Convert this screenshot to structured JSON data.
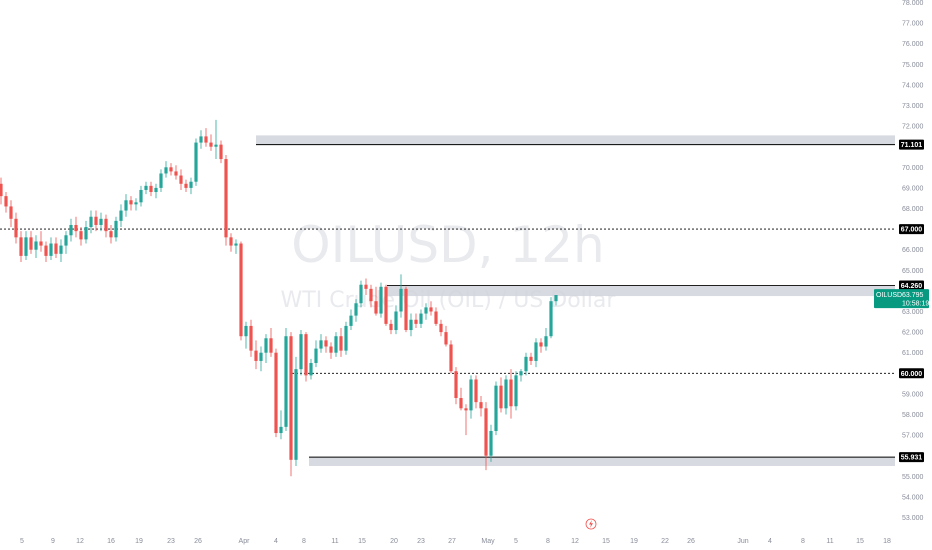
{
  "chart_data": {
    "type": "candlestick",
    "symbol_watermark": "OILUSD, 12h",
    "description_watermark": "WTI Crude Oil (OIL) / US Dollar",
    "y_axis": {
      "range": [
        52.5,
        78.0
      ],
      "ticks": [
        78.0,
        77.0,
        76.0,
        75.0,
        74.0,
        73.0,
        72.0,
        71.0,
        70.0,
        69.0,
        68.0,
        67.0,
        66.0,
        65.0,
        64.0,
        63.0,
        62.0,
        61.0,
        60.0,
        59.0,
        58.0,
        57.0,
        56.0,
        55.0,
        54.0,
        53.0
      ]
    },
    "x_axis": {
      "tick_labels": [
        "5",
        "9",
        "12",
        "16",
        "19",
        "23",
        "26",
        "Apr",
        "4",
        "8",
        "11",
        "15",
        "20",
        "23",
        "27",
        "May",
        "5",
        "8",
        "12",
        "15",
        "19",
        "22",
        "26",
        "Jun",
        "4",
        "8",
        "11",
        "15",
        "18"
      ]
    },
    "zones": [
      {
        "low": 71.1,
        "high": 71.55
      },
      {
        "low": 63.75,
        "high": 64.26
      },
      {
        "low": 55.5,
        "high": 55.93
      }
    ],
    "horizontal_levels": [
      {
        "price": 71.101,
        "label": "71.101",
        "style": "solid"
      },
      {
        "price": 67.0,
        "label": "67.000",
        "style": "dashed"
      },
      {
        "price": 64.26,
        "label": "64.260",
        "style": "solid"
      },
      {
        "price": 60.0,
        "label": "60.000",
        "style": "dashed"
      },
      {
        "price": 55.931,
        "label": "55.931",
        "style": "solid"
      }
    ],
    "current_price": {
      "symbol": "OILUSD",
      "price": "63.795",
      "countdown": "10:58:19",
      "value": 63.795
    },
    "colors": {
      "up": "#26a69a",
      "down": "#ef5350",
      "level": "#000000",
      "zone": "#d1d4dc",
      "price_tag": "#089981"
    },
    "candles": [
      [
        69.2,
        69.5,
        68.2,
        68.6
      ],
      [
        68.6,
        68.8,
        67.8,
        68.1
      ],
      [
        68.1,
        68.4,
        67.1,
        67.5
      ],
      [
        67.5,
        67.8,
        66.3,
        66.6
      ],
      [
        66.6,
        66.9,
        65.4,
        65.7
      ],
      [
        65.7,
        66.9,
        65.5,
        66.6
      ],
      [
        66.6,
        66.9,
        65.8,
        66.0
      ],
      [
        66.0,
        66.7,
        65.6,
        66.4
      ],
      [
        66.4,
        66.9,
        65.9,
        66.2
      ],
      [
        66.2,
        66.4,
        65.4,
        65.7
      ],
      [
        65.7,
        66.6,
        65.5,
        66.3
      ],
      [
        66.3,
        66.6,
        65.6,
        65.8
      ],
      [
        65.8,
        66.5,
        65.4,
        66.2
      ],
      [
        66.2,
        66.9,
        65.8,
        66.7
      ],
      [
        66.7,
        67.5,
        66.4,
        67.2
      ],
      [
        67.2,
        67.6,
        66.6,
        66.9
      ],
      [
        66.9,
        67.1,
        66.2,
        66.5
      ],
      [
        66.5,
        67.4,
        66.3,
        67.1
      ],
      [
        67.1,
        67.9,
        66.8,
        67.6
      ],
      [
        67.6,
        67.9,
        66.9,
        67.2
      ],
      [
        67.2,
        67.8,
        66.9,
        67.5
      ],
      [
        67.5,
        67.7,
        66.6,
        66.9
      ],
      [
        66.9,
        67.2,
        66.3,
        66.6
      ],
      [
        66.6,
        67.6,
        66.4,
        67.4
      ],
      [
        67.4,
        68.2,
        67.1,
        67.9
      ],
      [
        67.9,
        68.7,
        67.6,
        68.4
      ],
      [
        68.4,
        68.6,
        67.9,
        68.2
      ],
      [
        68.2,
        68.5,
        67.9,
        68.3
      ],
      [
        68.3,
        69.1,
        68.1,
        68.9
      ],
      [
        68.9,
        69.3,
        68.7,
        69.1
      ],
      [
        69.1,
        69.3,
        68.6,
        68.8
      ],
      [
        68.8,
        69.2,
        68.5,
        69.0
      ],
      [
        69.0,
        69.9,
        68.8,
        69.7
      ],
      [
        69.7,
        70.3,
        69.5,
        70.0
      ],
      [
        70.0,
        70.2,
        69.6,
        69.8
      ],
      [
        69.8,
        70.1,
        69.4,
        69.6
      ],
      [
        69.6,
        69.9,
        68.9,
        69.2
      ],
      [
        69.2,
        69.4,
        68.8,
        69.0
      ],
      [
        69.0,
        69.5,
        68.7,
        69.3
      ],
      [
        69.3,
        71.4,
        69.1,
        71.2
      ],
      [
        71.2,
        71.8,
        70.9,
        71.5
      ],
      [
        71.5,
        71.9,
        71.0,
        71.2
      ],
      [
        71.2,
        71.6,
        70.8,
        71.0
      ],
      [
        71.0,
        72.3,
        70.4,
        71.1
      ],
      [
        71.1,
        71.3,
        70.2,
        70.4
      ],
      [
        70.4,
        70.6,
        66.2,
        66.6
      ],
      [
        66.6,
        66.8,
        65.9,
        66.2
      ],
      [
        66.2,
        66.5,
        65.8,
        66.3
      ],
      [
        66.3,
        66.4,
        61.6,
        61.8
      ],
      [
        61.8,
        62.5,
        61.2,
        62.3
      ],
      [
        62.3,
        62.6,
        60.8,
        61.1
      ],
      [
        61.1,
        61.6,
        60.2,
        60.6
      ],
      [
        60.6,
        61.3,
        60.1,
        61.0
      ],
      [
        61.0,
        61.9,
        60.5,
        61.7
      ],
      [
        61.7,
        62.2,
        60.8,
        61.0
      ],
      [
        61.0,
        61.2,
        56.9,
        57.1
      ],
      [
        57.1,
        58.2,
        56.8,
        57.4
      ],
      [
        57.4,
        62.2,
        57.2,
        61.8
      ],
      [
        61.8,
        62.0,
        55.0,
        55.8
      ],
      [
        55.8,
        60.8,
        55.5,
        60.2
      ],
      [
        60.2,
        62.1,
        59.9,
        61.9
      ],
      [
        61.9,
        62.0,
        59.6,
        59.9
      ],
      [
        59.9,
        60.7,
        59.7,
        60.5
      ],
      [
        60.5,
        61.6,
        60.3,
        61.2
      ],
      [
        61.2,
        61.9,
        61.0,
        61.6
      ],
      [
        61.6,
        61.8,
        61.0,
        61.3
      ],
      [
        61.3,
        61.5,
        60.7,
        61.0
      ],
      [
        61.0,
        62.0,
        60.8,
        61.8
      ],
      [
        61.8,
        62.2,
        60.8,
        61.1
      ],
      [
        61.1,
        62.5,
        60.9,
        62.3
      ],
      [
        62.3,
        63.1,
        62.1,
        62.8
      ],
      [
        62.8,
        63.6,
        62.5,
        63.4
      ],
      [
        63.4,
        64.5,
        63.2,
        64.3
      ],
      [
        64.3,
        64.6,
        63.8,
        64.1
      ],
      [
        64.1,
        64.3,
        63.2,
        63.5
      ],
      [
        63.5,
        64.2,
        62.8,
        62.9
      ],
      [
        62.9,
        64.4,
        62.7,
        64.2
      ],
      [
        64.2,
        64.3,
        62.3,
        62.4
      ],
      [
        62.4,
        62.6,
        61.9,
        62.1
      ],
      [
        62.1,
        63.3,
        61.9,
        63.0
      ],
      [
        63.0,
        64.8,
        62.7,
        64.1
      ],
      [
        64.1,
        64.2,
        62.0,
        62.1
      ],
      [
        62.1,
        62.9,
        61.8,
        62.6
      ],
      [
        62.6,
        62.9,
        62.2,
        62.4
      ],
      [
        62.4,
        63.1,
        62.2,
        62.9
      ],
      [
        62.9,
        63.4,
        62.6,
        63.2
      ],
      [
        63.2,
        63.5,
        62.8,
        63.0
      ],
      [
        63.0,
        63.2,
        62.3,
        62.4
      ],
      [
        62.4,
        62.6,
        61.8,
        62.0
      ],
      [
        62.0,
        62.3,
        61.3,
        61.4
      ],
      [
        61.4,
        61.6,
        60.0,
        60.1
      ],
      [
        60.1,
        60.3,
        58.5,
        58.8
      ],
      [
        58.8,
        59.3,
        58.2,
        58.3
      ],
      [
        58.3,
        58.5,
        57.0,
        58.2
      ],
      [
        58.2,
        59.9,
        57.8,
        59.7
      ],
      [
        59.7,
        59.9,
        58.3,
        58.6
      ],
      [
        58.6,
        58.9,
        57.9,
        58.3
      ],
      [
        58.3,
        58.6,
        55.3,
        56.0
      ],
      [
        56.0,
        57.5,
        55.7,
        57.2
      ],
      [
        57.2,
        59.6,
        57.0,
        59.4
      ],
      [
        59.4,
        59.8,
        58.1,
        58.3
      ],
      [
        58.3,
        59.9,
        58.0,
        59.7
      ],
      [
        59.7,
        60.2,
        57.8,
        58.4
      ],
      [
        58.4,
        60.1,
        58.2,
        59.9
      ],
      [
        59.9,
        60.2,
        59.6,
        60.1
      ],
      [
        60.1,
        61.0,
        59.9,
        60.8
      ],
      [
        60.8,
        61.0,
        60.4,
        60.6
      ],
      [
        60.6,
        61.7,
        60.3,
        61.5
      ],
      [
        61.5,
        61.7,
        61.0,
        61.3
      ],
      [
        61.3,
        62.2,
        61.1,
        61.8
      ],
      [
        61.8,
        63.7,
        61.7,
        63.5
      ],
      [
        63.5,
        63.8,
        63.3,
        63.8
      ]
    ]
  }
}
